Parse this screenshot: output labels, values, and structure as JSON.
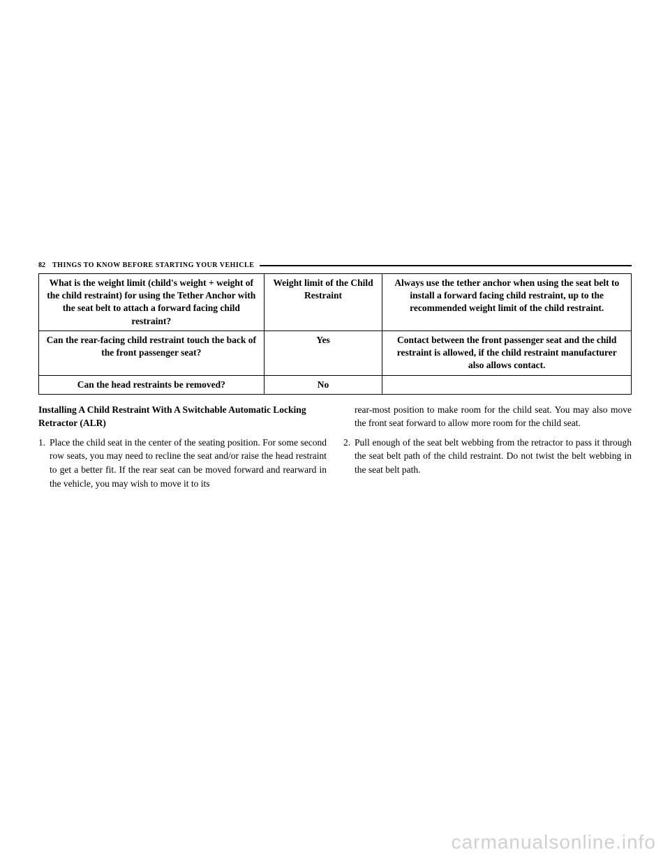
{
  "header": {
    "page_number": "82",
    "title": "THINGS TO KNOW BEFORE STARTING YOUR VEHICLE"
  },
  "table": {
    "rows": [
      {
        "c1": "What is the weight limit (child's weight + weight of the child restraint) for using the Tether Anchor with the seat belt to attach a forward facing child restraint?",
        "c2": "Weight limit of the Child Restraint",
        "c3": "Always use the tether anchor when using the seat belt to install a forward facing child restraint, up to the recommended weight limit of the child restraint."
      },
      {
        "c1": "Can the rear-facing child restraint touch the back of the front passenger seat?",
        "c2": "Yes",
        "c3": "Contact between the front passenger seat and the child restraint is allowed, if the child restraint manufacturer also allows contact."
      },
      {
        "c1": "Can the head restraints be removed?",
        "c2": "No",
        "c3": ""
      }
    ]
  },
  "section": {
    "heading": "Installing A Child Restraint With A Switchable Automatic Locking Retractor (ALR)",
    "items": [
      {
        "num": "1.",
        "part_a": "Place the child seat in the center of the seating position. For some second row seats, you may need to recline the seat and/or raise the head restraint to get a better fit. If the rear seat can be moved forward and rearward in the vehicle, you may wish to move it to its",
        "part_b": "rear-most position to make room for the child seat. You may also move the front seat forward to allow more room for the child seat."
      },
      {
        "num": "2.",
        "text": "Pull enough of the seat belt webbing from the retractor to pass it through the seat belt path of the child restraint. Do not twist the belt webbing in the seat belt path."
      }
    ]
  },
  "watermark": "carmanualsonline.info"
}
